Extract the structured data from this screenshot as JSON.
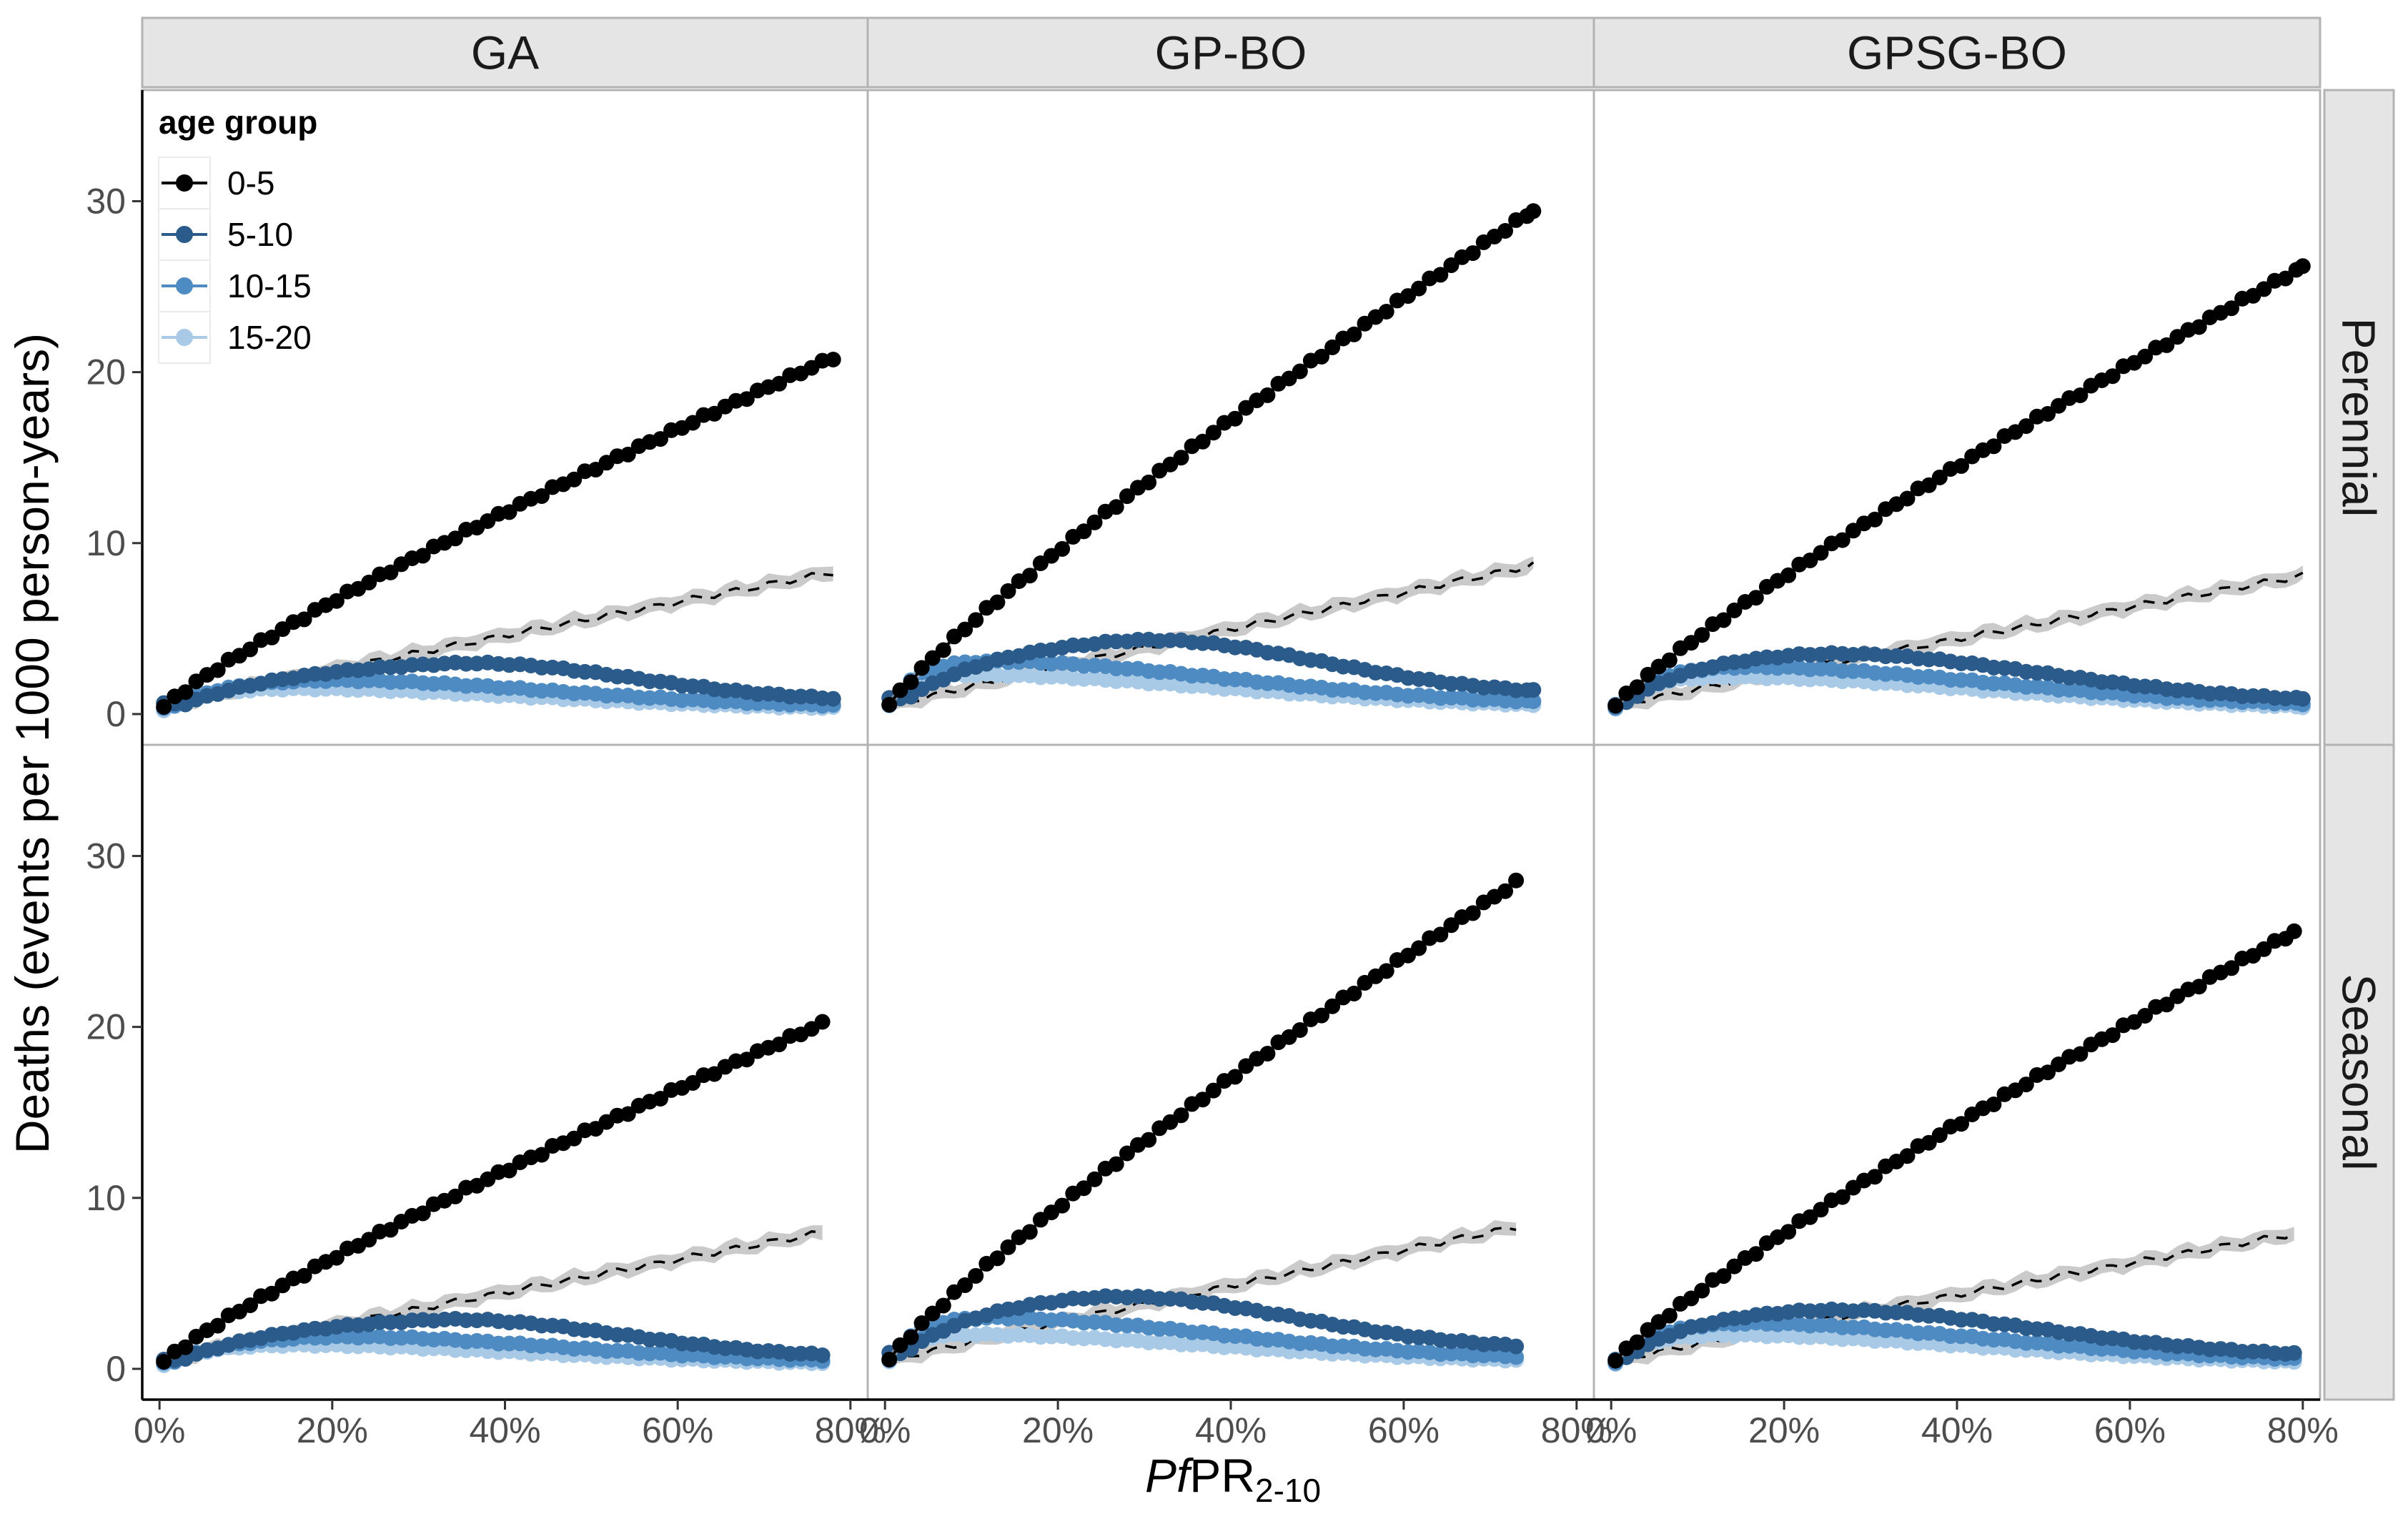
{
  "chart_data": {
    "type": "line",
    "facets": {
      "columns": [
        "GA",
        "GP-BO",
        "GPSG-BO"
      ],
      "rows": [
        "Perennial",
        "Seasonal"
      ]
    },
    "xlabel_italic": "Pf",
    "xlabel_main": "PR",
    "xlabel_sub": "2-10",
    "ylabel": "Deaths (events per 1000 person-years)",
    "xlim": [
      -0.02,
      0.82
    ],
    "ylim": [
      -1.8,
      36.5
    ],
    "x_ticks": [
      0,
      0.2,
      0.4,
      0.6,
      0.8
    ],
    "x_tick_labels": [
      "0%",
      "20%",
      "40%",
      "60%",
      "80%"
    ],
    "y_ticks": [
      0,
      10,
      20,
      30
    ],
    "y_tick_labels": [
      "0",
      "10",
      "20",
      "30"
    ],
    "legend": {
      "title": "age group",
      "placement": "top-left inside",
      "entries": [
        "0-5",
        "5-10",
        "10-15",
        "15-20"
      ]
    },
    "series_colors": {
      "0-5": "#000000",
      "5-10": "#2b5b8a",
      "10-15": "#4e8bc3",
      "15-20": "#a9cae6"
    },
    "reference_line": {
      "style": "dashed",
      "color": "#000000",
      "band_color": "#bdbdbd"
    },
    "panels": [
      {
        "column": "GA",
        "row": "Perennial",
        "x_max": 0.78,
        "peaks": {
          "0-5": 20.7,
          "5-10": [
            2.95,
            0.32,
            0.6
          ],
          "10-15": [
            2.0,
            0.14,
            0.3
          ],
          "15-20": [
            1.5,
            0.1,
            0.2
          ],
          "reference": 7.9
        }
      },
      {
        "column": "GP-BO",
        "row": "Perennial",
        "x_max": 0.75,
        "peaks": {
          "0-5": 29.3,
          "5-10": [
            4.3,
            0.26,
            0.9
          ],
          "10-15": [
            3.1,
            0.07,
            0.4
          ],
          "15-20": [
            2.3,
            0.05,
            0.3
          ],
          "reference": 8.3
        }
      },
      {
        "column": "GPSG-BO",
        "row": "Perennial",
        "x_max": 0.8,
        "peaks": {
          "0-5": 26.0,
          "5-10": [
            3.6,
            0.2,
            0.5
          ],
          "10-15": [
            2.8,
            0.1,
            0.3
          ],
          "15-20": [
            2.2,
            0.08,
            0.2
          ],
          "reference": 7.7
        }
      },
      {
        "column": "GA",
        "row": "Seasonal",
        "x_max": 0.77,
        "peaks": {
          "0-5": 20.1,
          "5-10": [
            2.9,
            0.3,
            0.5
          ],
          "10-15": [
            1.9,
            0.16,
            0.3
          ],
          "15-20": [
            1.4,
            0.1,
            0.2
          ],
          "reference": 7.6
        }
      },
      {
        "column": "GP-BO",
        "row": "Seasonal",
        "x_max": 0.73,
        "peaks": {
          "0-5": 28.3,
          "5-10": [
            4.2,
            0.22,
            0.9
          ],
          "10-15": [
            3.0,
            0.07,
            0.4
          ],
          "15-20": [
            2.0,
            0.05,
            0.3
          ],
          "reference": 7.9
        }
      },
      {
        "column": "GPSG-BO",
        "row": "Seasonal",
        "x_max": 0.79,
        "peaks": {
          "0-5": 25.4,
          "5-10": [
            3.5,
            0.2,
            0.5
          ],
          "10-15": [
            2.7,
            0.1,
            0.3
          ],
          "15-20": [
            2.0,
            0.08,
            0.2
          ],
          "reference": 7.5
        }
      }
    ]
  }
}
